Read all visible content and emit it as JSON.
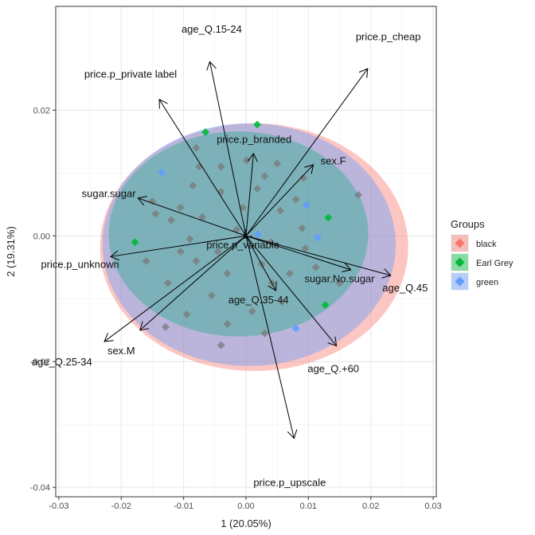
{
  "chart_data": {
    "type": "scatter",
    "subtype": "pca-biplot",
    "xlabel": "1 (20.05%)",
    "ylabel": "2 (19.31%)",
    "xlim": [
      -0.0305,
      0.0305
    ],
    "ylim": [
      -0.0415,
      0.0365
    ],
    "x_ticks": [
      -0.03,
      -0.02,
      -0.01,
      0.0,
      0.01,
      0.02,
      0.03
    ],
    "x_tick_labels": [
      "-0.03",
      "-0.02",
      "-0.01",
      "0.00",
      "0.01",
      "0.02",
      "0.03"
    ],
    "y_ticks": [
      -0.04,
      -0.02,
      0.0,
      0.02
    ],
    "y_tick_labels": [
      "-0.04",
      "-0.02",
      "0.00",
      "0.02"
    ],
    "grid": true,
    "legend": {
      "title": "Groups",
      "position": "right",
      "entries": [
        {
          "label": "black",
          "color": "#F8766D"
        },
        {
          "label": "Earl Grey",
          "color": "#00BA38"
        },
        {
          "label": "green",
          "color": "#619CFF"
        }
      ]
    },
    "ellipses": [
      {
        "group": "black",
        "color": "#F8766D",
        "cx": 0.0013,
        "cy": -0.0018,
        "rx": 0.0247,
        "ry": 0.0197
      },
      {
        "group": "Earl Grey",
        "color": "#00BA38",
        "cx": -0.0012,
        "cy": 0.0003,
        "rx": 0.0208,
        "ry": 0.0163
      },
      {
        "group": "green",
        "color": "#619CFF",
        "cx": 0.0005,
        "cy": -0.0014,
        "rx": 0.0235,
        "ry": 0.0193
      }
    ],
    "arrows": [
      {
        "label": "age_Q.15-24",
        "x": -0.0058,
        "y": 0.0277,
        "lx": -0.0055,
        "ly": 0.0328
      },
      {
        "label": "price.p_cheap",
        "x": 0.0195,
        "y": 0.0266,
        "lx": 0.0228,
        "ly": 0.0316
      },
      {
        "label": "price.p_private label",
        "x": -0.0139,
        "y": 0.0217,
        "lx": -0.0185,
        "ly": 0.0257
      },
      {
        "label": "price.p_branded",
        "x": 0.0012,
        "y": 0.0131,
        "lx": 0.0013,
        "ly": 0.0153
      },
      {
        "label": "sex.F",
        "x": 0.0108,
        "y": 0.0113,
        "lx": 0.014,
        "ly": 0.0119
      },
      {
        "label": "sugar.sugar",
        "x": -0.0173,
        "y": 0.006,
        "lx": -0.022,
        "ly": 0.0067
      },
      {
        "label": "price.p_variable",
        "x": -0.0004,
        "y": -0.0004,
        "lx": -0.0005,
        "ly": -0.0015
      },
      {
        "label": "price.p_unknown",
        "x": -0.0217,
        "y": -0.0033,
        "lx": -0.0266,
        "ly": -0.0046
      },
      {
        "label": "sugar.No.sugar",
        "x": 0.0168,
        "y": -0.0054,
        "lx": 0.015,
        "ly": -0.0069
      },
      {
        "label": "age_Q.45",
        "x": 0.0232,
        "y": -0.0063,
        "lx": 0.0255,
        "ly": -0.0083
      },
      {
        "label": "age_Q.35-44",
        "x": 0.0048,
        "y": -0.0087,
        "lx": 0.002,
        "ly": -0.0102
      },
      {
        "label": "sex.M",
        "x": -0.0227,
        "y": -0.0168,
        "lx": -0.02,
        "ly": -0.0183
      },
      {
        "label": "age_Q.25-34",
        "x": -0.017,
        "y": -0.015,
        "lx": -0.0295,
        "ly": -0.0201
      },
      {
        "label": "age_Q.+60",
        "x": 0.0145,
        "y": -0.0175,
        "lx": 0.014,
        "ly": -0.0212
      },
      {
        "label": "price.p_upscale",
        "x": 0.0077,
        "y": -0.0322,
        "lx": 0.007,
        "ly": -0.0393
      }
    ],
    "points": [
      {
        "group": "Earl Grey",
        "x": -0.0065,
        "y": 0.0165
      },
      {
        "group": "Earl Grey",
        "x": 0.0018,
        "y": 0.0177
      },
      {
        "group": "green",
        "x": -0.0135,
        "y": 0.0101
      },
      {
        "group": "black",
        "x": -0.0129,
        "y": -0.0145
      },
      {
        "group": "black",
        "x": -0.004,
        "y": -0.0174
      },
      {
        "group": "green",
        "x": 0.008,
        "y": -0.0147
      },
      {
        "group": "green",
        "x": 0.0097,
        "y": 0.0049
      },
      {
        "group": "green",
        "x": 0.0115,
        "y": -0.0003
      },
      {
        "group": "green",
        "x": 0.0019,
        "y": 0.0002
      },
      {
        "group": "Earl Grey",
        "x": 0.0132,
        "y": 0.0029
      },
      {
        "group": "Earl Grey",
        "x": -0.0178,
        "y": -0.001
      },
      {
        "group": "Earl Grey",
        "x": 0.0127,
        "y": -0.011
      },
      {
        "group": "black",
        "x": -0.008,
        "y": 0.014
      },
      {
        "group": "black",
        "x": -0.004,
        "y": 0.011
      },
      {
        "group": "black",
        "x": 0.0001,
        "y": 0.012
      },
      {
        "group": "black",
        "x": 0.005,
        "y": 0.0115
      },
      {
        "group": "black",
        "x": 0.0092,
        "y": 0.0092
      },
      {
        "group": "black",
        "x": 0.0018,
        "y": 0.0075
      },
      {
        "group": "black",
        "x": -0.0085,
        "y": 0.008
      },
      {
        "group": "black",
        "x": -0.015,
        "y": 0.0055
      },
      {
        "group": "black",
        "x": -0.012,
        "y": 0.0025
      },
      {
        "group": "black",
        "x": -0.007,
        "y": 0.003
      },
      {
        "group": "black",
        "x": -0.0005,
        "y": 0.0045
      },
      {
        "group": "black",
        "x": 0.0055,
        "y": 0.004
      },
      {
        "group": "black",
        "x": 0.009,
        "y": 0.0012
      },
      {
        "group": "black",
        "x": -0.016,
        "y": -0.004
      },
      {
        "group": "black",
        "x": -0.0125,
        "y": -0.0075
      },
      {
        "group": "black",
        "x": -0.008,
        "y": -0.004
      },
      {
        "group": "black",
        "x": -0.003,
        "y": -0.006
      },
      {
        "group": "black",
        "x": 0.0025,
        "y": -0.0045
      },
      {
        "group": "black",
        "x": 0.007,
        "y": -0.006
      },
      {
        "group": "black",
        "x": 0.0112,
        "y": -0.005
      },
      {
        "group": "black",
        "x": -0.0055,
        "y": -0.0095
      },
      {
        "group": "black",
        "x": 0.001,
        "y": -0.012
      },
      {
        "group": "black",
        "x": 0.0058,
        "y": -0.0105
      },
      {
        "group": "black",
        "x": -0.003,
        "y": -0.014
      },
      {
        "group": "black",
        "x": 0.003,
        "y": -0.0155
      },
      {
        "group": "black",
        "x": -0.0095,
        "y": -0.0125
      },
      {
        "group": "black",
        "x": 0.018,
        "y": 0.0065
      },
      {
        "group": "black",
        "x": 0.015,
        "y": -0.0075
      },
      {
        "group": "black",
        "x": -0.0145,
        "y": 0.0035
      },
      {
        "group": "black",
        "x": -0.0105,
        "y": 0.0045
      },
      {
        "group": "black",
        "x": -0.009,
        "y": -0.0005
      },
      {
        "group": "black",
        "x": -0.004,
        "y": 0.007
      },
      {
        "group": "black",
        "x": 0.003,
        "y": 0.0095
      },
      {
        "group": "black",
        "x": 0.008,
        "y": 0.0058
      },
      {
        "group": "black",
        "x": -0.0075,
        "y": 0.011
      },
      {
        "group": "black",
        "x": -0.0015,
        "y": 0.001
      },
      {
        "group": "black",
        "x": 0.004,
        "y": -0.001
      },
      {
        "group": "black",
        "x": -0.0045,
        "y": -0.0025
      },
      {
        "group": "black",
        "x": -0.0105,
        "y": -0.0025
      },
      {
        "group": "black",
        "x": 0.0095,
        "y": -0.002
      },
      {
        "group": "black",
        "x": 0.0042,
        "y": -0.0075
      }
    ]
  }
}
